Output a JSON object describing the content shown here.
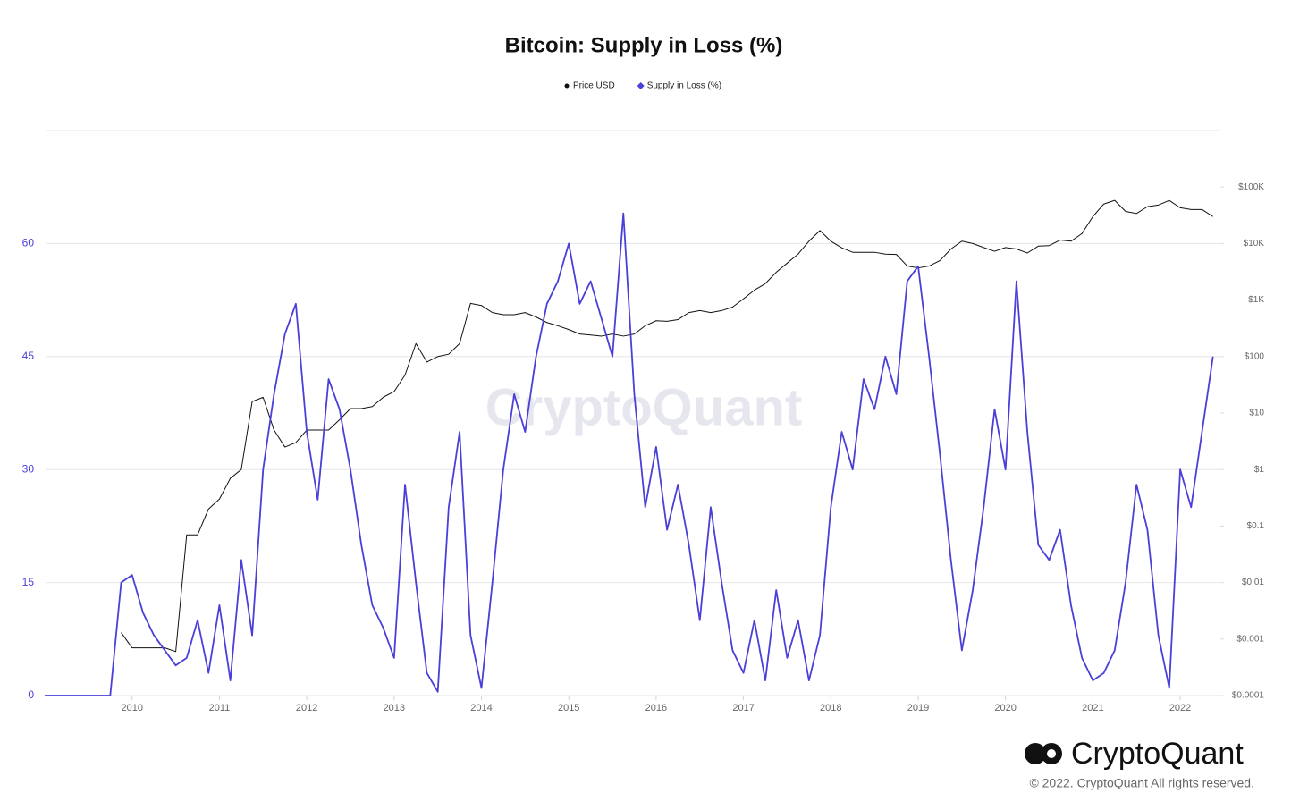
{
  "chart_data": {
    "type": "line",
    "title": "Bitcoin: Supply in Loss (%)",
    "watermark": "CryptoQuant",
    "brand": "CryptoQuant",
    "copyright": "© 2022. CryptoQuant All rights reserved.",
    "x": [
      2009.0,
      2009.125,
      2009.25,
      2009.375,
      2009.5,
      2009.625,
      2009.75,
      2009.875,
      2010.0,
      2010.125,
      2010.25,
      2010.375,
      2010.5,
      2010.625,
      2010.75,
      2010.875,
      2011.0,
      2011.125,
      2011.25,
      2011.375,
      2011.5,
      2011.625,
      2011.75,
      2011.875,
      2012.0,
      2012.125,
      2012.25,
      2012.375,
      2012.5,
      2012.625,
      2012.75,
      2012.875,
      2013.0,
      2013.125,
      2013.25,
      2013.375,
      2013.5,
      2013.625,
      2013.75,
      2013.875,
      2014.0,
      2014.125,
      2014.25,
      2014.375,
      2014.5,
      2014.625,
      2014.75,
      2014.875,
      2015.0,
      2015.125,
      2015.25,
      2015.375,
      2015.5,
      2015.625,
      2015.75,
      2015.875,
      2016.0,
      2016.125,
      2016.25,
      2016.375,
      2016.5,
      2016.625,
      2016.75,
      2016.875,
      2017.0,
      2017.125,
      2017.25,
      2017.375,
      2017.5,
      2017.625,
      2017.75,
      2017.875,
      2018.0,
      2018.125,
      2018.25,
      2018.375,
      2018.5,
      2018.625,
      2018.75,
      2018.875,
      2019.0,
      2019.125,
      2019.25,
      2019.375,
      2019.5,
      2019.625,
      2019.75,
      2019.875,
      2020.0,
      2020.125,
      2020.25,
      2020.375,
      2020.5,
      2020.625,
      2020.75,
      2020.875,
      2021.0,
      2021.125,
      2021.25,
      2021.375,
      2021.5,
      2021.625,
      2021.75,
      2021.875,
      2022.0,
      2022.125,
      2022.25,
      2022.375
    ],
    "series": [
      {
        "name": "Price USD",
        "color": "#111111",
        "axis": "y2",
        "values": [
          null,
          null,
          null,
          null,
          null,
          null,
          null,
          0.0013,
          0.0007,
          0.0007,
          0.0007,
          0.0007,
          0.0006,
          0.07,
          0.07,
          0.2,
          0.3,
          0.7,
          1,
          16,
          19,
          5,
          2.5,
          3,
          5,
          5,
          5,
          7.6,
          12,
          12,
          13,
          19,
          24,
          47,
          170,
          80,
          100,
          110,
          170,
          870,
          800,
          600,
          550,
          550,
          600,
          500,
          400,
          350,
          300,
          250,
          240,
          230,
          250,
          230,
          250,
          350,
          430,
          420,
          450,
          600,
          650,
          600,
          650,
          750,
          1050,
          1500,
          1950,
          3100,
          4500,
          6500,
          11000,
          17000,
          11000,
          8400,
          7000,
          7000,
          7000,
          6500,
          6400,
          4000,
          3700,
          4000,
          5000,
          8000,
          11000,
          10000,
          8500,
          7300,
          8500,
          8000,
          6800,
          9000,
          9200,
          11500,
          11000,
          15000,
          30000,
          50000,
          58000,
          37000,
          34000,
          45000,
          48000,
          58000,
          43000,
          40000,
          40000,
          30000
        ]
      },
      {
        "name": "Supply in Loss (%)",
        "color": "#4a3fd8",
        "axis": "y",
        "values": [
          0,
          0,
          0,
          0,
          0,
          0,
          0,
          15,
          16,
          11,
          8,
          6,
          4,
          5,
          10,
          3,
          12,
          2,
          18,
          8,
          30,
          40,
          48,
          52,
          35,
          26,
          42,
          38,
          30,
          20,
          12,
          9,
          5,
          28,
          15,
          3,
          0.5,
          25,
          35,
          8,
          1,
          15,
          30,
          40,
          35,
          45,
          52,
          55,
          60,
          52,
          55,
          50,
          45,
          64,
          40,
          25,
          33,
          22,
          28,
          20,
          10,
          25,
          15,
          6,
          3,
          10,
          2,
          14,
          5,
          10,
          2,
          8,
          25,
          35,
          30,
          42,
          38,
          45,
          40,
          55,
          57,
          45,
          32,
          18,
          6,
          14,
          25,
          38,
          30,
          55,
          35,
          20,
          18,
          22,
          12,
          5,
          2,
          3,
          6,
          15,
          28,
          22,
          8,
          1,
          30,
          25,
          35,
          45
        ]
      }
    ],
    "xlim": [
      2009.02,
      2022.46
    ],
    "xticks": [
      2010,
      2011,
      2012,
      2013,
      2014,
      2015,
      2016,
      2017,
      2018,
      2019,
      2020,
      2021,
      2022
    ],
    "ylim": [
      0,
      75
    ],
    "yticks": [
      0,
      15,
      30,
      45,
      60
    ],
    "y2lim": [
      0.0001,
      1000000
    ],
    "y2log": true,
    "y2ticks": [
      {
        "value": 0.0001,
        "label": "$0.0001"
      },
      {
        "value": 0.001,
        "label": "$0.001"
      },
      {
        "value": 0.01,
        "label": "$0.01"
      },
      {
        "value": 0.1,
        "label": "$0.1"
      },
      {
        "value": 1,
        "label": "$1"
      },
      {
        "value": 10,
        "label": "$10"
      },
      {
        "value": 100,
        "label": "$100"
      },
      {
        "value": 1000,
        "label": "$1K"
      },
      {
        "value": 10000,
        "label": "$10K"
      },
      {
        "value": 100000,
        "label": "$100K"
      }
    ],
    "grid": true,
    "legend": "top"
  }
}
